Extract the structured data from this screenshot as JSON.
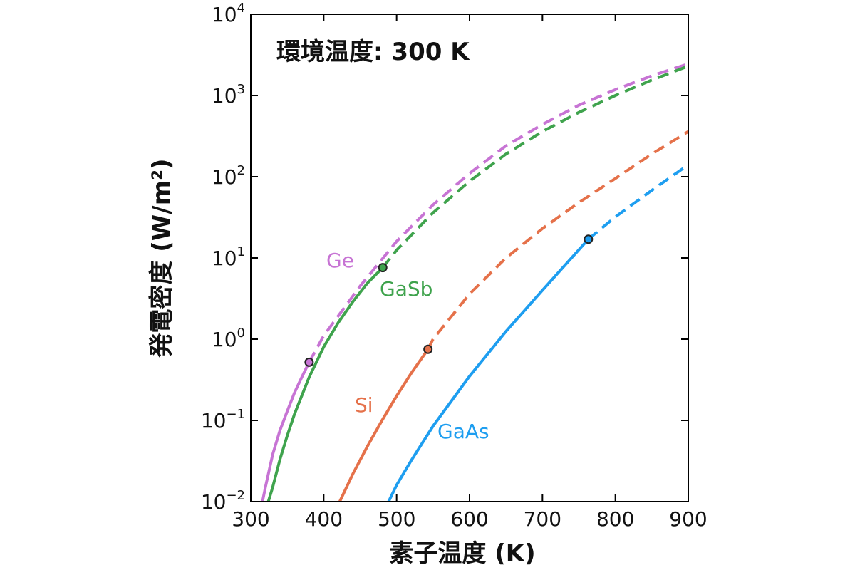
{
  "chart_data": {
    "type": "line",
    "annotation": "環境温度: 300 K",
    "xlabel": "素子温度 (K)",
    "ylabel": "発電密度 (W/m²)",
    "xlim": [
      300,
      900
    ],
    "ylim": [
      0.01,
      10000
    ],
    "yscale": "log",
    "x_ticks": [
      "300",
      "400",
      "500",
      "600",
      "700",
      "800",
      "900"
    ],
    "y_ticks": [
      {
        "base": "10",
        "exp": "−2"
      },
      {
        "base": "10",
        "exp": "−1"
      },
      {
        "base": "10",
        "exp": "0"
      },
      {
        "base": "10",
        "exp": "1"
      },
      {
        "base": "10",
        "exp": "2"
      },
      {
        "base": "10",
        "exp": "3"
      },
      {
        "base": "10",
        "exp": "4"
      }
    ],
    "grid": false,
    "legend": "inline labels",
    "series": [
      {
        "name": "Ge",
        "color": "#c774d4",
        "marker": {
          "x": 380,
          "y": 0.52
        },
        "solid": {
          "x": [
            316,
            320,
            330,
            340,
            350,
            360,
            370,
            380
          ],
          "y": [
            0.01,
            0.015,
            0.038,
            0.075,
            0.13,
            0.22,
            0.34,
            0.52
          ]
        },
        "dashed": {
          "x": [
            380,
            400,
            450,
            500,
            550,
            600,
            650,
            700,
            750,
            800,
            850,
            900
          ],
          "y": [
            0.52,
            1.1,
            4.5,
            16,
            45,
            110,
            240,
            440,
            760,
            1180,
            1750,
            2450
          ]
        }
      },
      {
        "name": "GaSb",
        "color": "#3fa34d",
        "marker": {
          "x": 481,
          "y": 7.6
        },
        "solid": {
          "x": [
            324,
            330,
            340,
            350,
            360,
            380,
            400,
            420,
            440,
            460,
            481
          ],
          "y": [
            0.01,
            0.015,
            0.033,
            0.065,
            0.12,
            0.34,
            0.8,
            1.6,
            2.9,
            4.9,
            7.6
          ]
        },
        "dashed": {
          "x": [
            481,
            500,
            550,
            600,
            650,
            700,
            750,
            800,
            850,
            900
          ],
          "y": [
            7.6,
            12.5,
            36,
            88,
            190,
            360,
            620,
            1000,
            1550,
            2300
          ]
        }
      },
      {
        "name": "Si",
        "color": "#e5714a",
        "marker": {
          "x": 543,
          "y": 0.75
        },
        "solid": {
          "x": [
            422,
            440,
            460,
            480,
            500,
            520,
            543
          ],
          "y": [
            0.01,
            0.022,
            0.048,
            0.1,
            0.2,
            0.38,
            0.75
          ]
        },
        "dashed": {
          "x": [
            543,
            550,
            600,
            650,
            700,
            750,
            800,
            850,
            900
          ],
          "y": [
            0.75,
            1.0,
            3.6,
            10,
            23,
            48,
            95,
            190,
            360
          ]
        }
      },
      {
        "name": "GaAs",
        "color": "#1e9ef0",
        "marker": {
          "x": 763,
          "y": 17
        },
        "solid": {
          "x": [
            489,
            500,
            520,
            550,
            600,
            650,
            700,
            763
          ],
          "y": [
            0.01,
            0.016,
            0.032,
            0.085,
            0.35,
            1.25,
            4.0,
            17
          ]
        },
        "dashed": {
          "x": [
            763,
            800,
            850,
            900
          ],
          "y": [
            17,
            32,
            68,
            140
          ]
        }
      }
    ]
  }
}
